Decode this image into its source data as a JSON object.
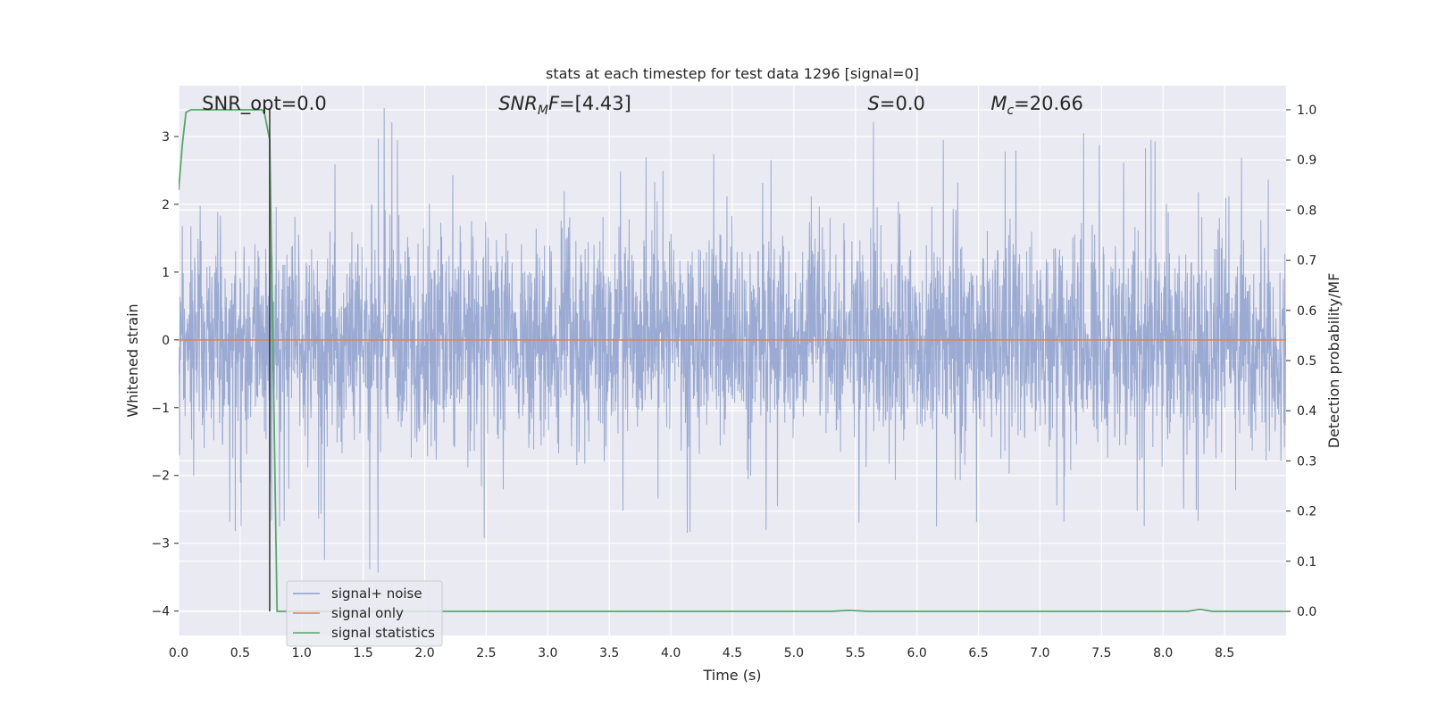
{
  "chart_data": {
    "type": "line",
    "title": "stats at each timestep for test data 1296 [signal=0]",
    "xlabel": "Time (s)",
    "ylabel": "Whitened strain",
    "y2label": "Detection probability/MF",
    "xlim": [
      0,
      9.0
    ],
    "ylim": [
      -4.36,
      3.75
    ],
    "y2lim": [
      -0.048,
      1.048
    ],
    "xticks": [
      0.0,
      0.5,
      1.0,
      1.5,
      2.0,
      2.5,
      3.0,
      3.5,
      4.0,
      4.5,
      5.0,
      5.5,
      6.0,
      6.5,
      7.0,
      7.5,
      8.0,
      8.5
    ],
    "xtick_labels": [
      "0.0",
      "0.5",
      "1.0",
      "1.5",
      "2.0",
      "2.5",
      "3.0",
      "3.5",
      "4.0",
      "4.5",
      "5.0",
      "5.5",
      "6.0",
      "6.5",
      "7.0",
      "7.5",
      "8.0",
      "8.5"
    ],
    "yticks": [
      -4,
      -3,
      -2,
      -1,
      0,
      1,
      2,
      3
    ],
    "ytick_labels": [
      "−4",
      "−3",
      "−2",
      "−1",
      "0",
      "1",
      "2",
      "3"
    ],
    "y2ticks": [
      0.0,
      0.1,
      0.2,
      0.3,
      0.4,
      0.5,
      0.6,
      0.7,
      0.8,
      0.9,
      1.0
    ],
    "y2tick_labels": [
      "0.0",
      "0.1",
      "0.2",
      "0.3",
      "0.4",
      "0.5",
      "0.6",
      "0.7",
      "0.8",
      "0.9",
      "1.0"
    ],
    "grid": true,
    "legend_position": "lower-left",
    "annotations": [
      {
        "id": "snr-opt",
        "text": "SNR_opt=0.0",
        "x": 0.19
      },
      {
        "id": "snr-mf",
        "text": "SNR_MF=[4.43]",
        "x": 2.6
      },
      {
        "id": "s",
        "text": "S=0.0",
        "x": 5.6
      },
      {
        "id": "mc",
        "text": "M_c=20.66",
        "x": 6.6
      }
    ],
    "vline_x": 0.74,
    "series": [
      {
        "name": "signal+ noise",
        "axis": "left",
        "color": "#8c9fcc",
        "description_values": "whitened noise, approx. amplitude within [-3.3, 3.5]",
        "envelope_upper": [
          [
            0.0,
            2.0
          ],
          [
            0.1,
            2.3
          ],
          [
            0.5,
            2.1
          ],
          [
            1.0,
            2.0
          ],
          [
            1.66,
            3.5
          ],
          [
            2.0,
            2.5
          ],
          [
            3.13,
            3.0
          ],
          [
            4.0,
            2.6
          ],
          [
            5.5,
            3.3
          ],
          [
            6.5,
            3.3
          ],
          [
            7.6,
            3.0
          ],
          [
            8.5,
            3.0
          ],
          [
            9.0,
            2.3
          ]
        ],
        "envelope_lower": [
          [
            0.0,
            -1.6
          ],
          [
            0.09,
            -2.85
          ],
          [
            0.7,
            -2.8
          ],
          [
            1.12,
            -3.5
          ],
          [
            2.7,
            -3.3
          ],
          [
            4.65,
            -3.0
          ],
          [
            5.1,
            -2.9
          ],
          [
            6.5,
            -2.8
          ],
          [
            7.6,
            -2.9
          ],
          [
            8.5,
            -2.7
          ],
          [
            9.0,
            -2.0
          ]
        ]
      },
      {
        "name": "signal only",
        "axis": "left",
        "color": "#dd8452",
        "x": [
          0.0,
          9.0
        ],
        "values": [
          0.0,
          0.0
        ]
      },
      {
        "name": "signal statistics",
        "axis": "right",
        "color": "#55a868",
        "x": [
          0.0,
          0.03,
          0.06,
          0.1,
          0.2,
          0.4,
          0.6,
          0.68,
          0.7,
          0.74,
          0.8,
          1.0,
          2.0,
          3.0,
          4.0,
          5.0,
          5.3,
          5.45,
          5.6,
          6.0,
          7.0,
          8.0,
          8.2,
          8.3,
          8.4,
          8.6,
          9.0
        ],
        "values": [
          0.84,
          0.93,
          0.995,
          1.0,
          1.0,
          1.0,
          1.0,
          1.0,
          0.99,
          0.94,
          0.0,
          0.0,
          0.0,
          0.0,
          0.0,
          0.0,
          0.0,
          0.002,
          0.0,
          0.0,
          0.0,
          0.0,
          0.0,
          0.004,
          0.0,
          0.0,
          0.0
        ]
      }
    ]
  }
}
